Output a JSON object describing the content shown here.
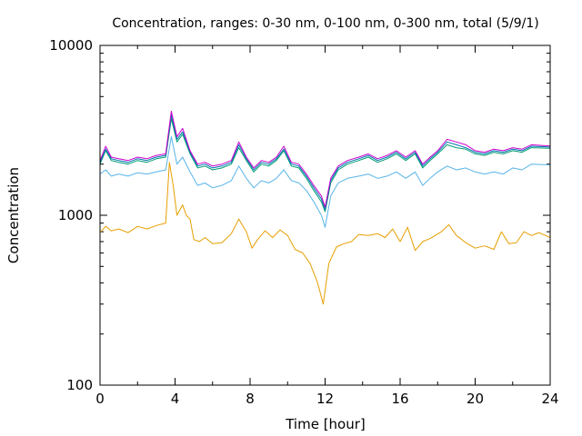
{
  "chart_data": {
    "type": "line",
    "title": "Concentration, ranges: 0-30 nm, 0-100 nm, 0-300 nm, total (5/9/1)",
    "xlabel": "Time [hour]",
    "ylabel": "Concentration",
    "xlim": [
      0,
      24
    ],
    "ylim": [
      100,
      10000
    ],
    "yscale": "log",
    "grid": false,
    "legend": "none",
    "x_ticks": [
      {
        "value": 0,
        "label": "0"
      },
      {
        "value": 4,
        "label": "4"
      },
      {
        "value": 8,
        "label": "8"
      },
      {
        "value": 12,
        "label": "12"
      },
      {
        "value": 16,
        "label": "16"
      },
      {
        "value": 20,
        "label": "20"
      },
      {
        "value": 24,
        "label": "24"
      }
    ],
    "y_ticks": [
      {
        "value": 100,
        "label": "100"
      },
      {
        "value": 1000,
        "label": "1000"
      },
      {
        "value": 10000,
        "label": "10000"
      }
    ],
    "series": [
      {
        "color": "#e69f00",
        "points": [
          [
            0,
            790
          ],
          [
            0.3,
            860
          ],
          [
            0.6,
            810
          ],
          [
            1,
            830
          ],
          [
            1.5,
            790
          ],
          [
            2,
            860
          ],
          [
            2.5,
            830
          ],
          [
            3,
            870
          ],
          [
            3.5,
            900
          ],
          [
            3.7,
            2050
          ],
          [
            3.9,
            1500
          ],
          [
            4.1,
            1000
          ],
          [
            4.4,
            1150
          ],
          [
            4.6,
            1000
          ],
          [
            4.8,
            950
          ],
          [
            5,
            720
          ],
          [
            5.3,
            700
          ],
          [
            5.6,
            740
          ],
          [
            6,
            680
          ],
          [
            6.5,
            690
          ],
          [
            7,
            780
          ],
          [
            7.4,
            950
          ],
          [
            7.8,
            800
          ],
          [
            8.1,
            640
          ],
          [
            8.4,
            720
          ],
          [
            8.8,
            810
          ],
          [
            9.2,
            740
          ],
          [
            9.6,
            820
          ],
          [
            10,
            760
          ],
          [
            10.4,
            630
          ],
          [
            10.8,
            600
          ],
          [
            11.2,
            520
          ],
          [
            11.6,
            400
          ],
          [
            11.9,
            300
          ],
          [
            12.2,
            520
          ],
          [
            12.6,
            650
          ],
          [
            13,
            680
          ],
          [
            13.4,
            700
          ],
          [
            13.8,
            770
          ],
          [
            14.3,
            760
          ],
          [
            14.8,
            780
          ],
          [
            15.2,
            740
          ],
          [
            15.6,
            830
          ],
          [
            16,
            700
          ],
          [
            16.4,
            850
          ],
          [
            16.8,
            620
          ],
          [
            17.2,
            700
          ],
          [
            17.6,
            730
          ],
          [
            18.2,
            800
          ],
          [
            18.6,
            880
          ],
          [
            19,
            760
          ],
          [
            19.5,
            690
          ],
          [
            20,
            640
          ],
          [
            20.5,
            660
          ],
          [
            21,
            630
          ],
          [
            21.4,
            800
          ],
          [
            21.8,
            680
          ],
          [
            22.2,
            690
          ],
          [
            22.6,
            800
          ],
          [
            23,
            760
          ],
          [
            23.4,
            790
          ],
          [
            24,
            740
          ]
        ]
      },
      {
        "color": "#56b4e9",
        "points": [
          [
            0,
            1750
          ],
          [
            0.3,
            1850
          ],
          [
            0.6,
            1700
          ],
          [
            1,
            1750
          ],
          [
            1.5,
            1700
          ],
          [
            2,
            1780
          ],
          [
            2.5,
            1750
          ],
          [
            3,
            1800
          ],
          [
            3.5,
            1850
          ],
          [
            3.8,
            2900
          ],
          [
            4.1,
            2000
          ],
          [
            4.4,
            2200
          ],
          [
            4.8,
            1800
          ],
          [
            5.2,
            1500
          ],
          [
            5.6,
            1550
          ],
          [
            6,
            1450
          ],
          [
            6.5,
            1500
          ],
          [
            7,
            1600
          ],
          [
            7.4,
            1950
          ],
          [
            7.8,
            1650
          ],
          [
            8.2,
            1450
          ],
          [
            8.6,
            1600
          ],
          [
            9,
            1550
          ],
          [
            9.4,
            1650
          ],
          [
            9.8,
            1850
          ],
          [
            10.2,
            1600
          ],
          [
            10.6,
            1550
          ],
          [
            11,
            1400
          ],
          [
            11.4,
            1200
          ],
          [
            11.8,
            1000
          ],
          [
            12,
            850
          ],
          [
            12.3,
            1300
          ],
          [
            12.7,
            1550
          ],
          [
            13.2,
            1650
          ],
          [
            13.8,
            1700
          ],
          [
            14.3,
            1750
          ],
          [
            14.8,
            1650
          ],
          [
            15.3,
            1700
          ],
          [
            15.8,
            1800
          ],
          [
            16.3,
            1650
          ],
          [
            16.8,
            1800
          ],
          [
            17.2,
            1500
          ],
          [
            17.6,
            1650
          ],
          [
            18,
            1800
          ],
          [
            18.5,
            1950
          ],
          [
            19,
            1850
          ],
          [
            19.5,
            1900
          ],
          [
            20,
            1800
          ],
          [
            20.5,
            1750
          ],
          [
            21,
            1800
          ],
          [
            21.5,
            1750
          ],
          [
            22,
            1900
          ],
          [
            22.5,
            1850
          ],
          [
            23,
            2000
          ],
          [
            24,
            1980
          ]
        ]
      },
      {
        "color": "#009e73",
        "points": [
          [
            0,
            2000
          ],
          [
            0.3,
            2400
          ],
          [
            0.6,
            2100
          ],
          [
            1,
            2050
          ],
          [
            1.5,
            2000
          ],
          [
            2,
            2100
          ],
          [
            2.5,
            2050
          ],
          [
            3,
            2150
          ],
          [
            3.5,
            2200
          ],
          [
            3.8,
            3700
          ],
          [
            4.1,
            2700
          ],
          [
            4.4,
            3000
          ],
          [
            4.8,
            2300
          ],
          [
            5.2,
            1900
          ],
          [
            5.6,
            1950
          ],
          [
            6,
            1850
          ],
          [
            6.5,
            1900
          ],
          [
            7,
            2000
          ],
          [
            7.4,
            2500
          ],
          [
            7.8,
            2100
          ],
          [
            8.2,
            1800
          ],
          [
            8.6,
            2000
          ],
          [
            9,
            1950
          ],
          [
            9.4,
            2100
          ],
          [
            9.8,
            2400
          ],
          [
            10.2,
            1950
          ],
          [
            10.6,
            1900
          ],
          [
            11,
            1650
          ],
          [
            11.4,
            1400
          ],
          [
            11.8,
            1200
          ],
          [
            12,
            1050
          ],
          [
            12.3,
            1550
          ],
          [
            12.7,
            1850
          ],
          [
            13.2,
            2000
          ],
          [
            13.8,
            2100
          ],
          [
            14.3,
            2200
          ],
          [
            14.8,
            2050
          ],
          [
            15.3,
            2150
          ],
          [
            15.8,
            2300
          ],
          [
            16.3,
            2100
          ],
          [
            16.8,
            2300
          ],
          [
            17.2,
            1900
          ],
          [
            17.6,
            2100
          ],
          [
            18,
            2300
          ],
          [
            18.5,
            2600
          ],
          [
            19,
            2500
          ],
          [
            19.5,
            2450
          ],
          [
            20,
            2300
          ],
          [
            20.5,
            2250
          ],
          [
            21,
            2350
          ],
          [
            21.5,
            2300
          ],
          [
            22,
            2400
          ],
          [
            22.5,
            2350
          ],
          [
            23,
            2500
          ],
          [
            24,
            2480
          ]
        ]
      },
      {
        "color": "#0072b2",
        "points": [
          [
            0,
            2050
          ],
          [
            0.3,
            2450
          ],
          [
            0.6,
            2150
          ],
          [
            1,
            2100
          ],
          [
            1.5,
            2050
          ],
          [
            2,
            2150
          ],
          [
            2.5,
            2100
          ],
          [
            3,
            2200
          ],
          [
            3.5,
            2250
          ],
          [
            3.8,
            3900
          ],
          [
            4.1,
            2800
          ],
          [
            4.4,
            3100
          ],
          [
            4.8,
            2350
          ],
          [
            5.2,
            1950
          ],
          [
            5.6,
            2000
          ],
          [
            6,
            1900
          ],
          [
            6.5,
            1950
          ],
          [
            7,
            2050
          ],
          [
            7.4,
            2600
          ],
          [
            7.8,
            2150
          ],
          [
            8.2,
            1850
          ],
          [
            8.6,
            2050
          ],
          [
            9,
            2000
          ],
          [
            9.4,
            2150
          ],
          [
            9.8,
            2450
          ],
          [
            10.2,
            2000
          ],
          [
            10.6,
            1950
          ],
          [
            11,
            1700
          ],
          [
            11.4,
            1450
          ],
          [
            11.8,
            1250
          ],
          [
            12,
            1080
          ],
          [
            12.3,
            1600
          ],
          [
            12.7,
            1900
          ],
          [
            13.2,
            2050
          ],
          [
            13.8,
            2150
          ],
          [
            14.3,
            2250
          ],
          [
            14.8,
            2100
          ],
          [
            15.3,
            2200
          ],
          [
            15.8,
            2350
          ],
          [
            16.3,
            2150
          ],
          [
            16.8,
            2350
          ],
          [
            17.2,
            1950
          ],
          [
            17.6,
            2150
          ],
          [
            18,
            2350
          ],
          [
            18.5,
            2700
          ],
          [
            19,
            2600
          ],
          [
            19.5,
            2500
          ],
          [
            20,
            2350
          ],
          [
            20.5,
            2300
          ],
          [
            21,
            2400
          ],
          [
            21.5,
            2350
          ],
          [
            22,
            2450
          ],
          [
            22.5,
            2400
          ],
          [
            23,
            2550
          ],
          [
            24,
            2520
          ]
        ]
      },
      {
        "color": "#cc00cc",
        "points": [
          [
            0,
            2100
          ],
          [
            0.3,
            2550
          ],
          [
            0.6,
            2200
          ],
          [
            1,
            2150
          ],
          [
            1.5,
            2100
          ],
          [
            2,
            2200
          ],
          [
            2.5,
            2150
          ],
          [
            3,
            2250
          ],
          [
            3.5,
            2300
          ],
          [
            3.8,
            4100
          ],
          [
            4.1,
            2900
          ],
          [
            4.4,
            3250
          ],
          [
            4.8,
            2400
          ],
          [
            5.2,
            2000
          ],
          [
            5.6,
            2050
          ],
          [
            6,
            1950
          ],
          [
            6.5,
            2000
          ],
          [
            7,
            2100
          ],
          [
            7.4,
            2700
          ],
          [
            7.8,
            2200
          ],
          [
            8.2,
            1900
          ],
          [
            8.6,
            2100
          ],
          [
            9,
            2050
          ],
          [
            9.4,
            2200
          ],
          [
            9.8,
            2550
          ],
          [
            10.2,
            2050
          ],
          [
            10.6,
            2000
          ],
          [
            11,
            1750
          ],
          [
            11.4,
            1500
          ],
          [
            11.8,
            1300
          ],
          [
            12,
            1120
          ],
          [
            12.3,
            1650
          ],
          [
            12.7,
            1950
          ],
          [
            13.2,
            2100
          ],
          [
            13.8,
            2200
          ],
          [
            14.3,
            2300
          ],
          [
            14.8,
            2150
          ],
          [
            15.3,
            2250
          ],
          [
            15.8,
            2400
          ],
          [
            16.3,
            2200
          ],
          [
            16.8,
            2400
          ],
          [
            17.2,
            2000
          ],
          [
            17.6,
            2200
          ],
          [
            18,
            2400
          ],
          [
            18.5,
            2800
          ],
          [
            19,
            2700
          ],
          [
            19.5,
            2600
          ],
          [
            20,
            2400
          ],
          [
            20.5,
            2350
          ],
          [
            21,
            2450
          ],
          [
            21.5,
            2400
          ],
          [
            22,
            2500
          ],
          [
            22.5,
            2450
          ],
          [
            23,
            2600
          ],
          [
            24,
            2560
          ]
        ]
      }
    ]
  }
}
